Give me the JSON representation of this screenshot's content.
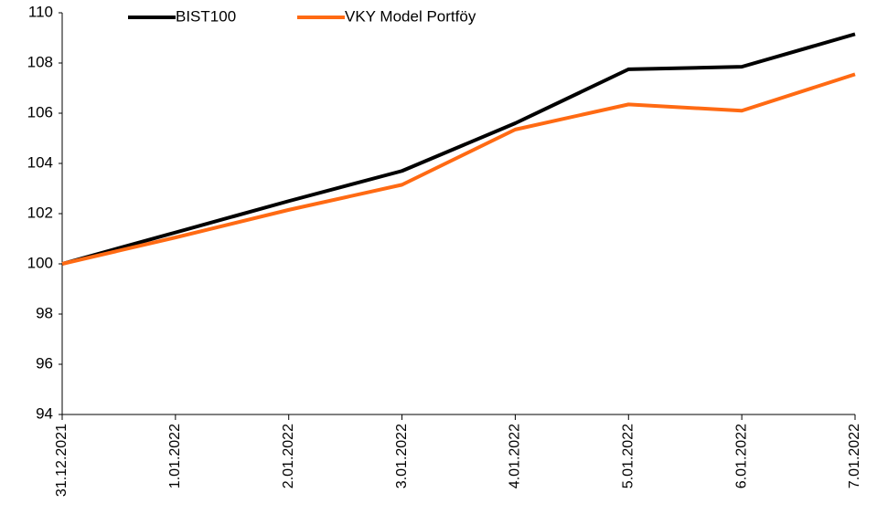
{
  "chart_data": {
    "type": "line",
    "categories": [
      "31.12.2021",
      "1.01.2022",
      "2.01.2022",
      "3.01.2022",
      "4.01.2022",
      "5.01.2022",
      "6.01.2022",
      "7.01.2022"
    ],
    "series": [
      {
        "name": "BIST100",
        "color": "#000000",
        "values": [
          100,
          101.25,
          102.5,
          103.7,
          105.6,
          107.75,
          107.85,
          109.15
        ]
      },
      {
        "name": "VKY Model Portföy",
        "color": "#ff6a13",
        "values": [
          100,
          101.05,
          102.15,
          103.15,
          105.35,
          106.35,
          106.1,
          107.55
        ]
      }
    ],
    "ylim": [
      94,
      110
    ],
    "yticks": [
      94,
      96,
      98,
      100,
      102,
      104,
      106,
      108,
      110
    ],
    "grid": false,
    "legend": "top"
  }
}
